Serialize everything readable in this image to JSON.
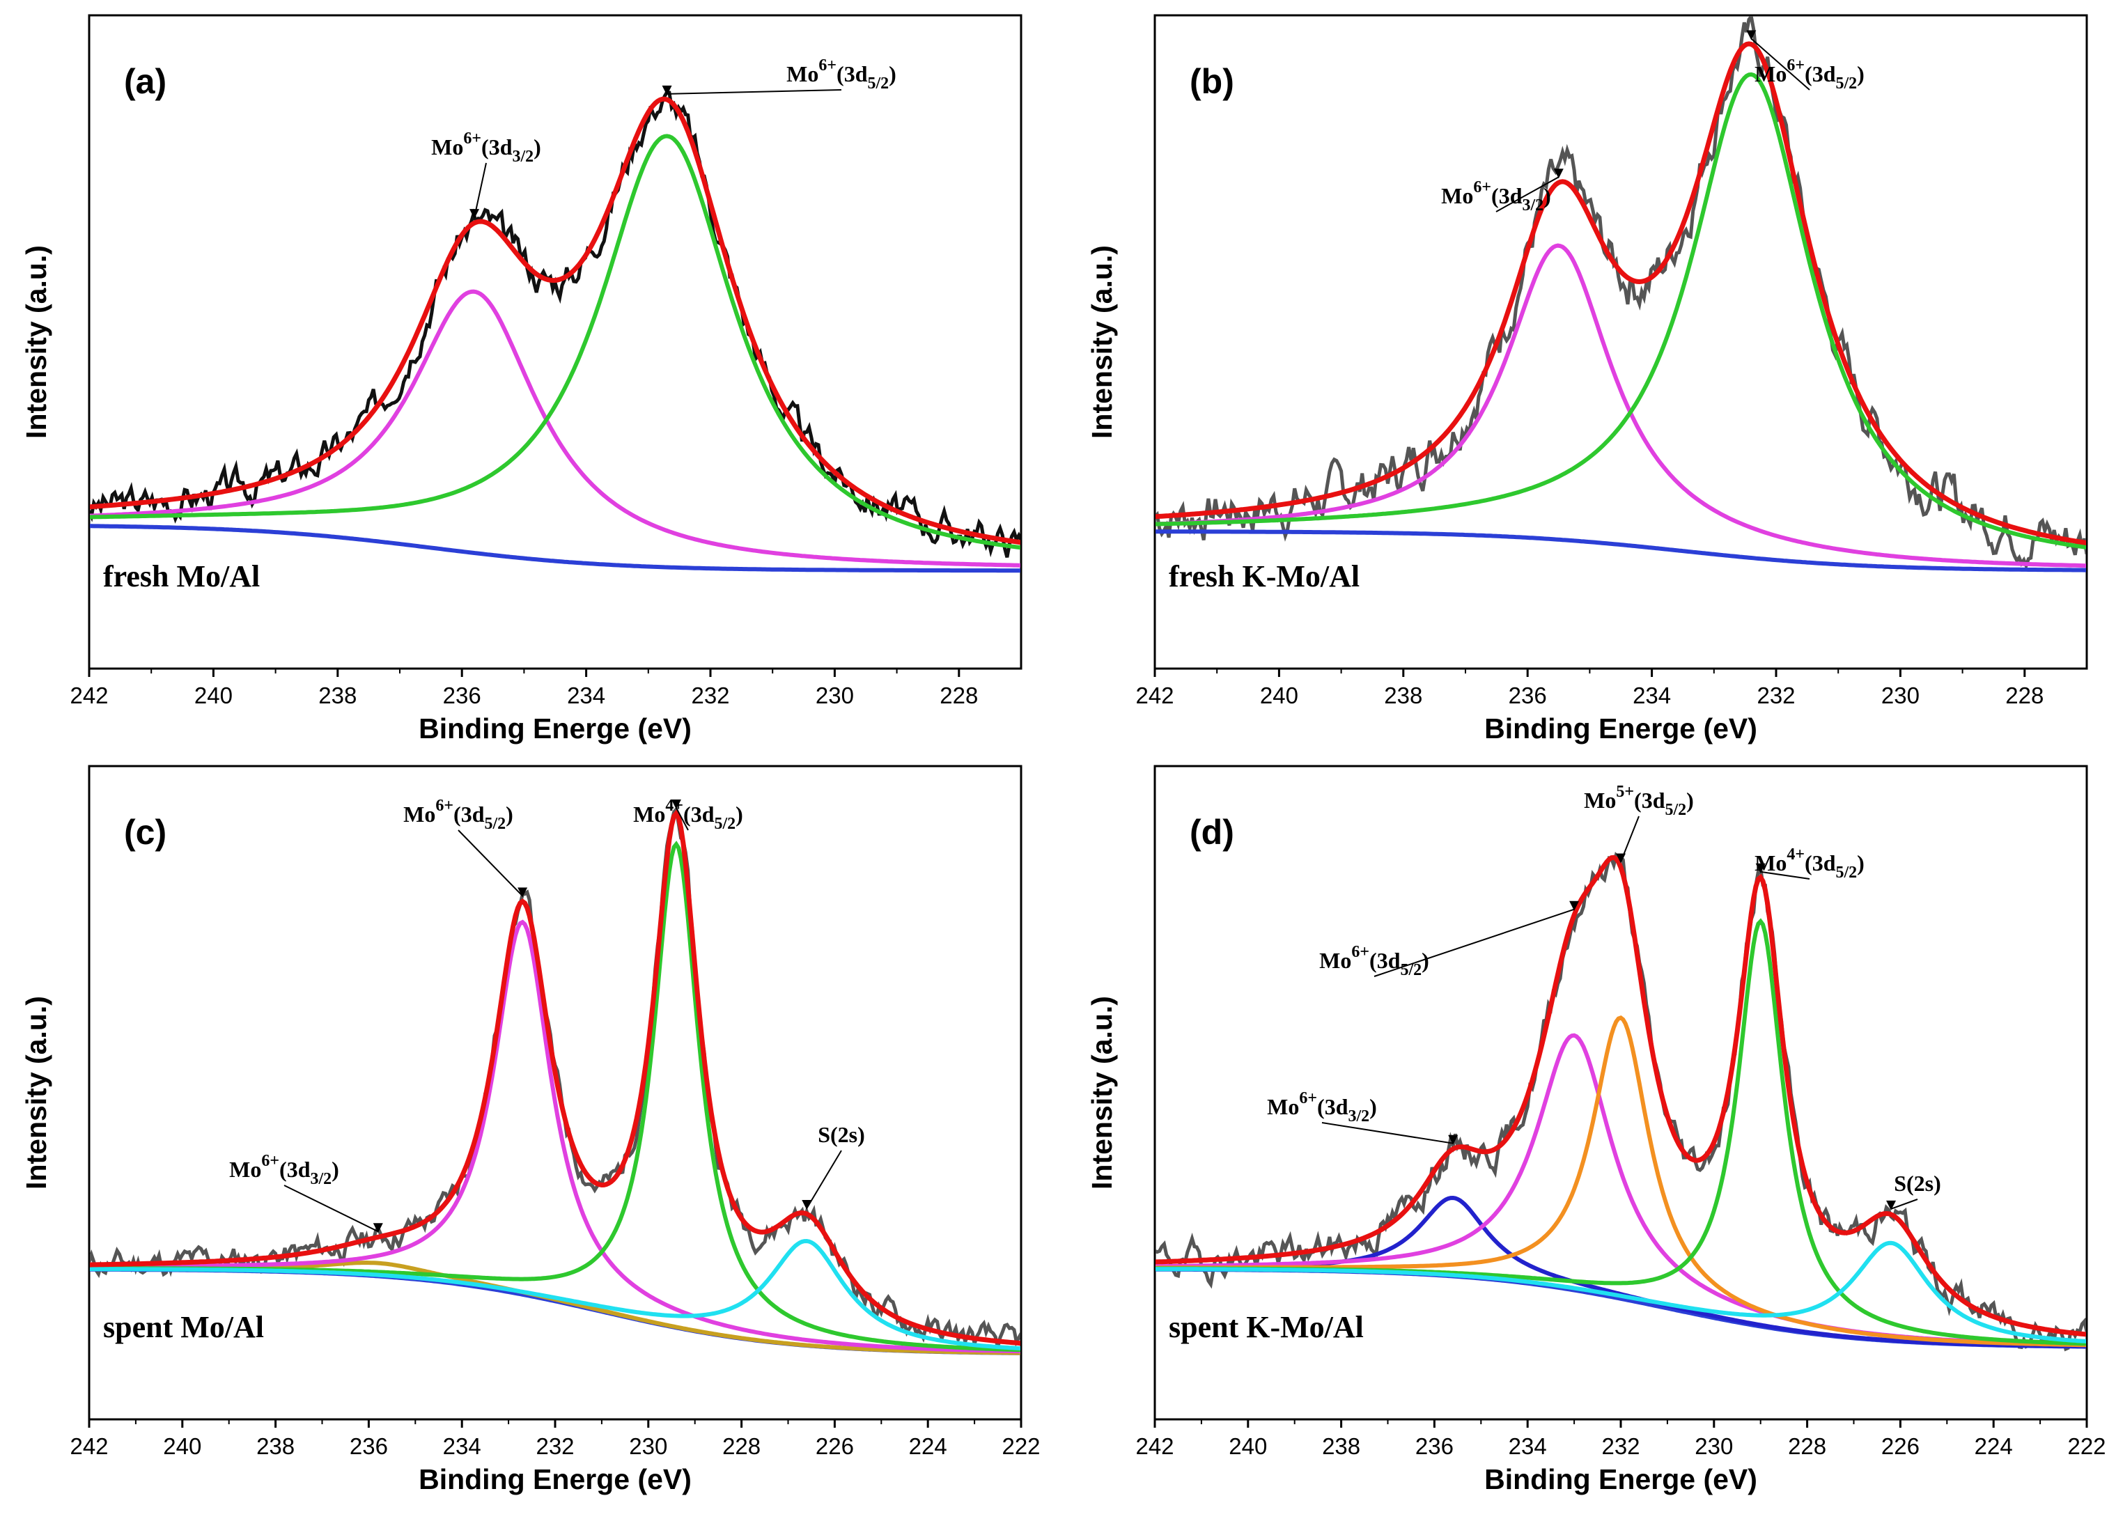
{
  "chart_data": [
    {
      "panel": "(a)",
      "sample": "fresh Mo/Al",
      "type": "line",
      "xlabel": "Binding Energe (eV)",
      "ylabel": "Intensity (a.u.)",
      "xlim": [
        242,
        227
      ],
      "xticks": [
        242,
        240,
        238,
        236,
        234,
        232,
        230,
        228
      ],
      "ylim": [
        0,
        1
      ],
      "background": {
        "left": 0.22,
        "right": 0.15,
        "center": 236.5,
        "drop_width": 3.0
      },
      "components": [
        {
          "name": "Mo6+ 3d3/2",
          "color": "#e040e0",
          "center": 235.8,
          "height": 0.4,
          "width": 1.25
        },
        {
          "name": "Mo6+ 3d5/2",
          "color": "#2ec82e",
          "center": 232.7,
          "height": 0.66,
          "width": 1.35
        }
      ],
      "raw": {
        "color": "#111111",
        "noise": 0.012,
        "seed": 3
      },
      "fit_color": "#e81010",
      "annotations": [
        {
          "ion": "Mo",
          "charge": "6+",
          "orbital": "3d",
          "sub": "3/2",
          "x": 235.8
        },
        {
          "ion": "Mo",
          "charge": "6+",
          "orbital": "3d",
          "sub": "5/2",
          "x": 232.7
        }
      ]
    },
    {
      "panel": "(b)",
      "sample": "fresh K-Mo/Al",
      "type": "line",
      "xlabel": "Binding Energe (eV)",
      "ylabel": "Intensity (a.u.)",
      "xlim": [
        242,
        227
      ],
      "xticks": [
        242,
        240,
        238,
        236,
        234,
        232,
        230,
        228
      ],
      "ylim": [
        0,
        1
      ],
      "background": {
        "left": 0.21,
        "right": 0.15,
        "center": 233.5,
        "drop_width": 3.0
      },
      "components": [
        {
          "name": "Mo6+ 3d3/2",
          "color": "#e040e0",
          "center": 235.5,
          "height": 0.45,
          "width": 1.05
        },
        {
          "name": "Mo6+ 3d5/2",
          "color": "#2ec82e",
          "center": 232.4,
          "height": 0.74,
          "width": 1.2
        }
      ],
      "raw": {
        "color": "#555555",
        "noise": 0.018,
        "seed": 7
      },
      "fit_color": "#e81010",
      "annotations": [
        {
          "ion": "Mo",
          "charge": "6+",
          "orbital": "3d",
          "sub": "3/2",
          "x": 235.5
        },
        {
          "ion": "Mo",
          "charge": "6+",
          "orbital": "3d",
          "sub": "5/2",
          "x": 232.4
        }
      ]
    },
    {
      "panel": "(c)",
      "sample": "spent Mo/Al",
      "type": "line",
      "xlabel": "Binding Energe (eV)",
      "ylabel": "Intensity (a.u.)",
      "xlim": [
        242,
        222
      ],
      "xticks": [
        242,
        240,
        238,
        236,
        234,
        232,
        230,
        228,
        226,
        224,
        222
      ],
      "ylim": [
        0,
        1
      ],
      "background": {
        "left": 0.23,
        "right": 0.1,
        "center": 231,
        "drop_width": 4.0
      },
      "components": [
        {
          "name": "Mo6+ 3d3/2",
          "color": "#c8a020",
          "center": 235.8,
          "height": 0.02,
          "width": 1.5
        },
        {
          "name": "Mo6+ 3d5/2",
          "color": "#e040e0",
          "center": 232.7,
          "height": 0.57,
          "width": 0.75
        },
        {
          "name": "Mo4+ 3d5/2",
          "color": "#2ec82e",
          "center": 229.4,
          "height": 0.74,
          "width": 0.6
        },
        {
          "name": "S(2s)",
          "color": "#20e0f0",
          "center": 226.6,
          "height": 0.16,
          "width": 1.0
        }
      ],
      "raw": {
        "color": "#555555",
        "noise": 0.01,
        "seed": 11
      },
      "fit_color": "#e81010",
      "annotations": [
        {
          "ion": "Mo",
          "charge": "6+",
          "orbital": "3d",
          "sub": "3/2",
          "x": 235.8
        },
        {
          "ion": "Mo",
          "charge": "6+",
          "orbital": "3d",
          "sub": "5/2",
          "x": 232.7
        },
        {
          "ion": "Mo",
          "charge": "4+",
          "orbital": "3d",
          "sub": "5/2",
          "x": 229.4
        },
        {
          "ion": "S(2s)",
          "charge": "",
          "orbital": "",
          "sub": "",
          "x": 226.6
        }
      ]
    },
    {
      "panel": "(d)",
      "sample": "spent K-Mo/Al",
      "type": "line",
      "xlabel": "Binding Energe (eV)",
      "ylabel": "Intensity (a.u.)",
      "xlim": [
        242,
        222
      ],
      "xticks": [
        242,
        240,
        238,
        236,
        234,
        232,
        230,
        228,
        226,
        224,
        222
      ],
      "ylim": [
        0,
        1
      ],
      "background": {
        "left": 0.23,
        "right": 0.11,
        "center": 231,
        "drop_width": 4.0
      },
      "components": [
        {
          "name": "Mo6+ 3d3/2",
          "color": "#2222cc",
          "center": 235.6,
          "height": 0.12,
          "width": 0.9
        },
        {
          "name": "Mo6+ 3d5/2",
          "color": "#e040e0",
          "center": 233.0,
          "height": 0.39,
          "width": 1.0
        },
        {
          "name": "Mo5+ 3d5/2",
          "color": "#f39020",
          "center": 232.0,
          "height": 0.43,
          "width": 0.75
        },
        {
          "name": "Mo4+ 3d5/2",
          "color": "#2ec82e",
          "center": 229.0,
          "height": 0.62,
          "width": 0.6
        },
        {
          "name": "S(2s)",
          "color": "#20e0f0",
          "center": 226.2,
          "height": 0.15,
          "width": 1.0
        }
      ],
      "raw": {
        "color": "#555555",
        "noise": 0.012,
        "seed": 19
      },
      "fit_color": "#e81010",
      "annotations": [
        {
          "ion": "Mo",
          "charge": "6+",
          "orbital": "3d",
          "sub": "3/2",
          "x": 235.6
        },
        {
          "ion": "Mo",
          "charge": "6+",
          "orbital": "3d",
          "sub": "5/2",
          "x": 233.0
        },
        {
          "ion": "Mo",
          "charge": "5+",
          "orbital": "3d",
          "sub": "5/2",
          "x": 232.0
        },
        {
          "ion": "Mo",
          "charge": "4+",
          "orbital": "3d",
          "sub": "5/2",
          "x": 229.0
        },
        {
          "ion": "S(2s)",
          "charge": "",
          "orbital": "",
          "sub": "",
          "x": 226.2
        }
      ]
    }
  ]
}
